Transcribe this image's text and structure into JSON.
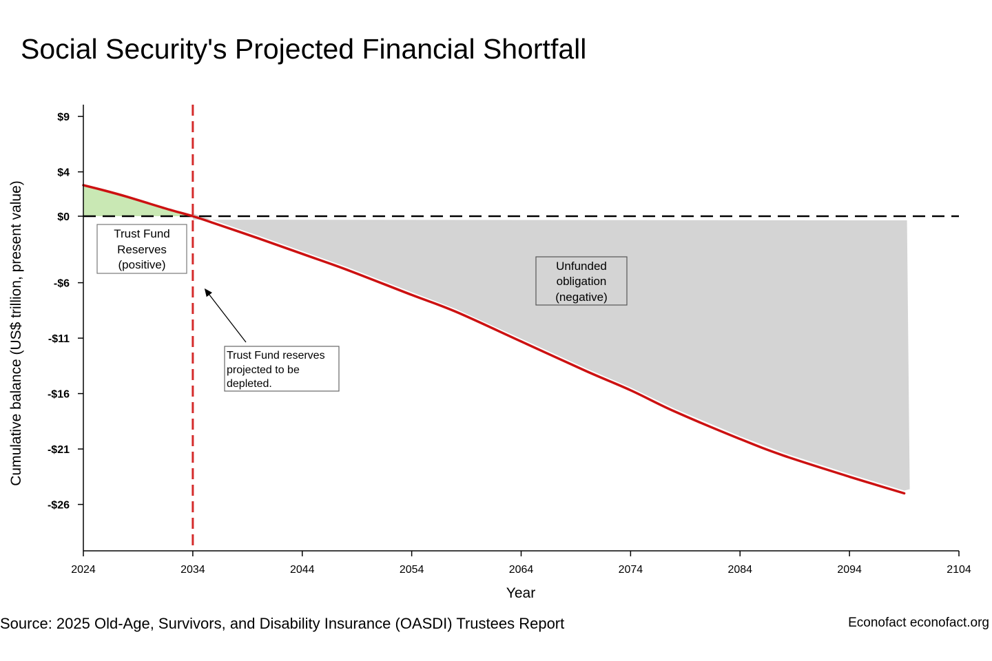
{
  "chart_data": {
    "type": "area",
    "title": "Social Security's Projected Financial Shortfall",
    "xlabel": "Year",
    "ylabel": "Cumulative balance (US$ trillion, present value)",
    "xlim": [
      2024,
      2104
    ],
    "ylim": [
      -30,
      10
    ],
    "xticks": [
      2024,
      2034,
      2044,
      2054,
      2064,
      2074,
      2084,
      2094,
      2104
    ],
    "yticks": [
      {
        "value": 9,
        "label": "$9"
      },
      {
        "value": 4,
        "label": "$4"
      },
      {
        "value": 0,
        "label": "$0"
      },
      {
        "value": -6,
        "label": "-$6"
      },
      {
        "value": -11,
        "label": "-$11"
      },
      {
        "value": -16,
        "label": "-$16"
      },
      {
        "value": -21,
        "label": "-$21"
      },
      {
        "value": -26,
        "label": "-$26"
      }
    ],
    "series": [
      {
        "x": [
          2024,
          2026,
          2028,
          2030,
          2032,
          2034,
          2036,
          2040,
          2044,
          2048,
          2054,
          2058,
          2064,
          2070,
          2074,
          2078,
          2084,
          2088,
          2094,
          2099
        ],
        "values": [
          2.8,
          2.3,
          1.75,
          1.15,
          0.55,
          0.0,
          -0.65,
          -2.0,
          -3.4,
          -4.8,
          -7.1,
          -8.6,
          -11.3,
          -14.0,
          -15.7,
          -17.6,
          -20.1,
          -21.6,
          -23.5,
          -25.0
        ]
      }
    ],
    "depletion_year": 2034,
    "zero_line": 0,
    "colors": {
      "balance_line": "#cc1111",
      "depletion_line": "#d42a2a",
      "positive_area": "#c9e8b4",
      "negative_area": "#d4d4d4",
      "zero_line": "#000000"
    },
    "annotations": [
      {
        "lines": [
          "Trust Fund",
          "Reserves",
          "(positive)"
        ]
      },
      {
        "lines": [
          "Unfunded",
          "obligation",
          "(negative)"
        ]
      },
      {
        "lines": [
          "Trust Fund reserves",
          "projected to be",
          "depleted."
        ]
      }
    ]
  },
  "footer": {
    "source": "Source: 2025 Old-Age, Survivors, and Disability Insurance (OASDI) Trustees Report",
    "credit": "Econofact econofact.org"
  }
}
